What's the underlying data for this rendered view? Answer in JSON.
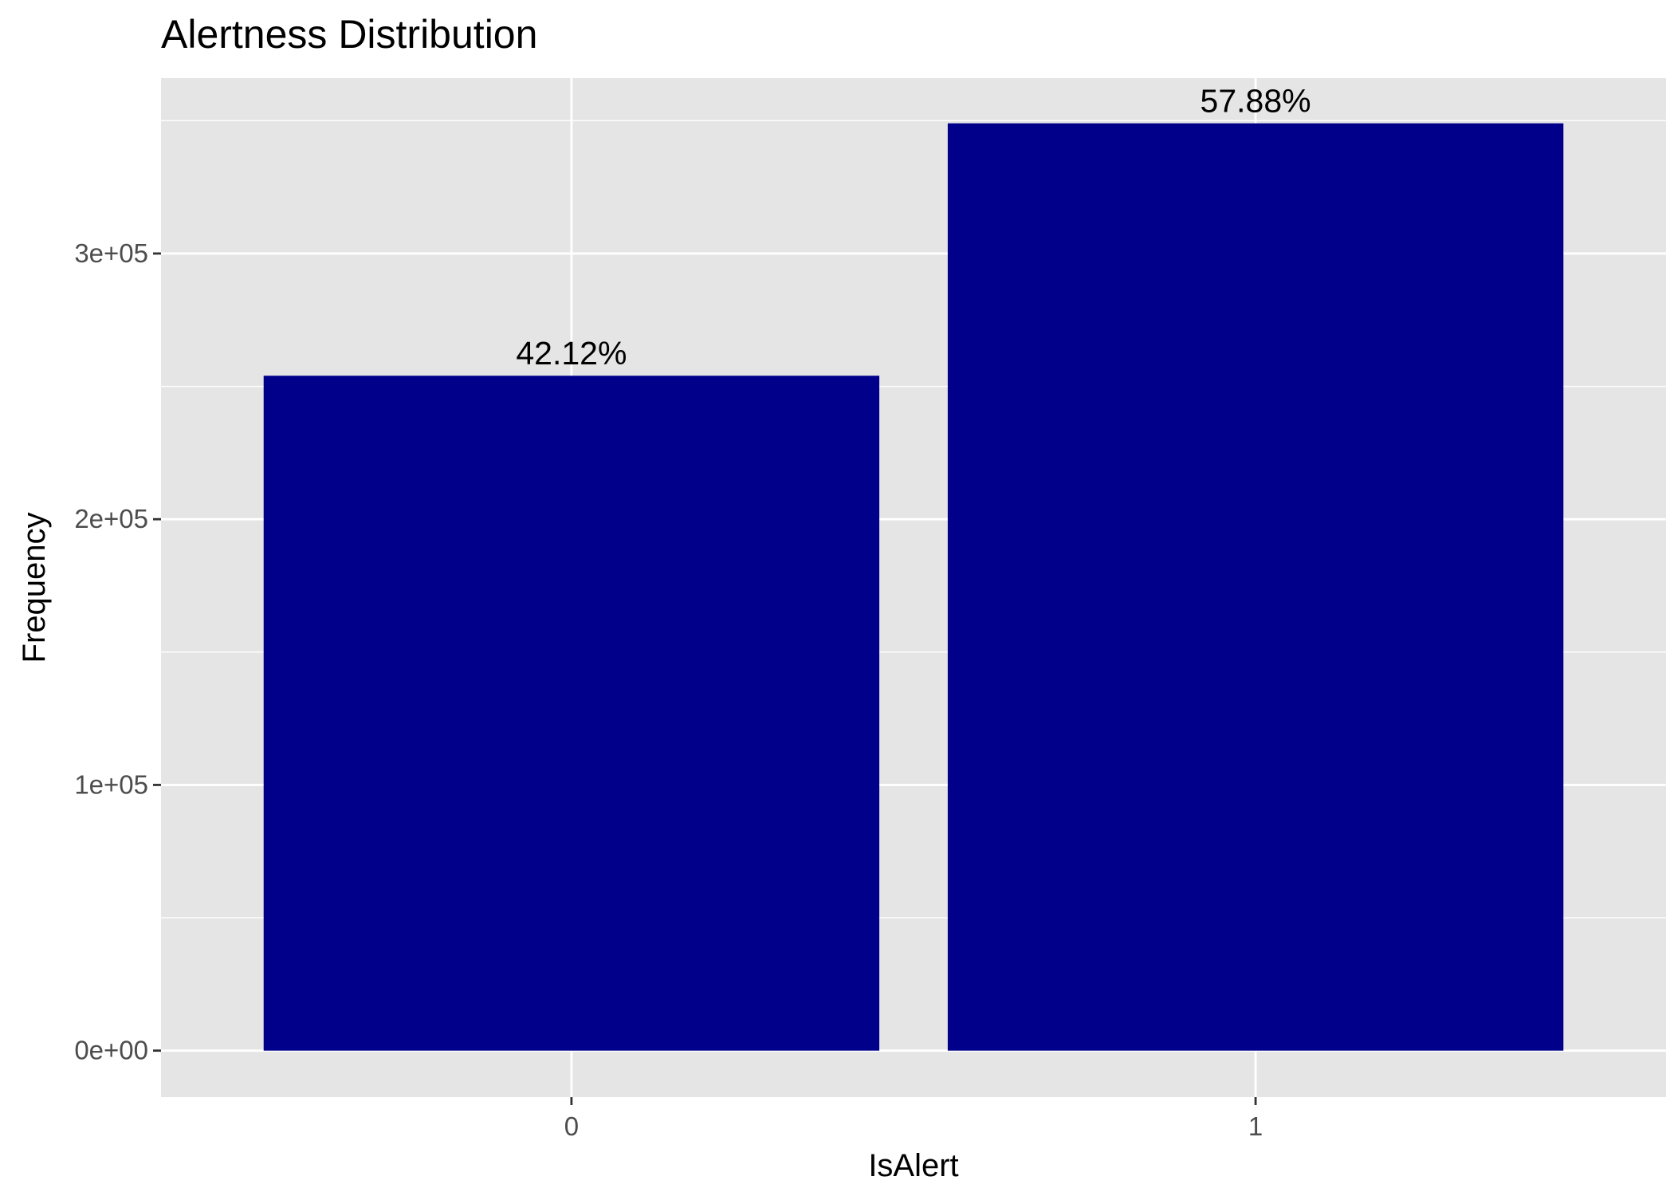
{
  "chart_data": {
    "type": "bar",
    "title": "Alertness Distribution",
    "xlabel": "IsAlert",
    "ylabel": "Frequency",
    "categories": [
      "0",
      "1"
    ],
    "values": [
      254000,
      349000
    ],
    "data_labels": [
      "42.12%",
      "57.88%"
    ],
    "ylim": [
      -17500,
      366000
    ],
    "yticks": [
      0,
      100000,
      200000,
      300000
    ],
    "ytick_labels": [
      "0e+00",
      "1e+05",
      "2e+05",
      "3e+05"
    ],
    "bar_color": "#00008b",
    "panel_background": "#e5e5e5",
    "grid_color": "#ffffff",
    "grid": true,
    "legend": "none"
  }
}
